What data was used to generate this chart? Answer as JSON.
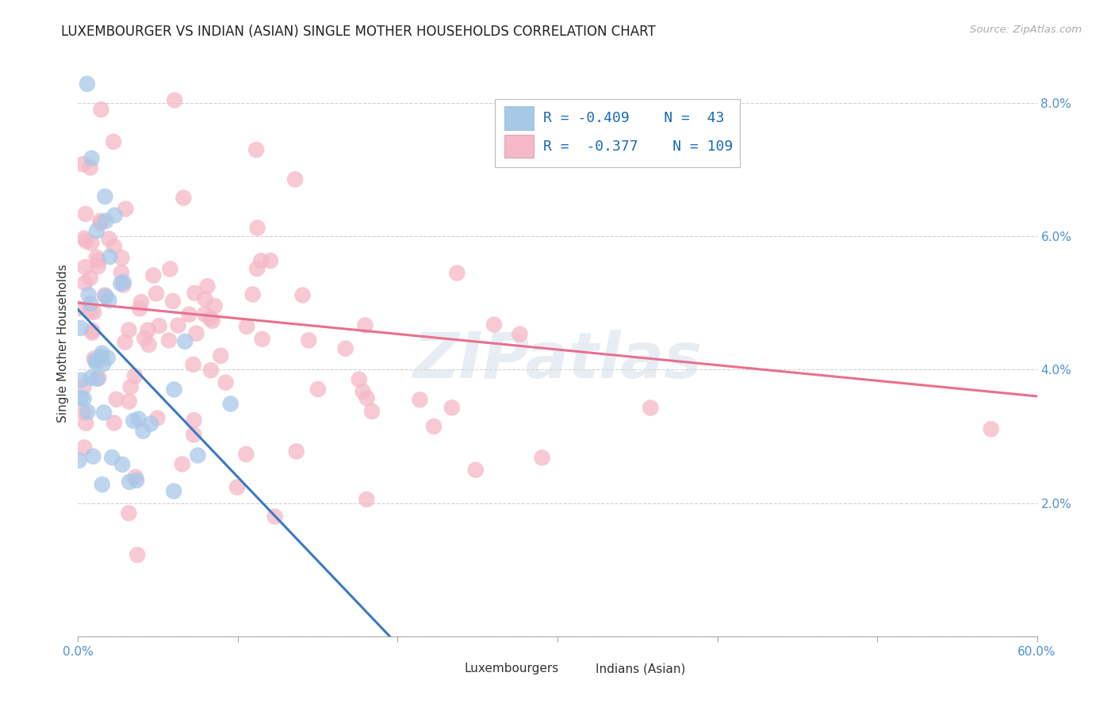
{
  "title": "LUXEMBOURGER VS INDIAN (ASIAN) SINGLE MOTHER HOUSEHOLDS CORRELATION CHART",
  "source": "Source: ZipAtlas.com",
  "ylabel": "Single Mother Households",
  "xlabel_lux": "Luxembourgers",
  "xlabel_ind": "Indians (Asian)",
  "watermark": "ZIPatlas",
  "xlim": [
    0.0,
    0.6
  ],
  "ylim": [
    0.0,
    0.088
  ],
  "xtick_vals": [
    0.0,
    0.1,
    0.2,
    0.3,
    0.4,
    0.5,
    0.6
  ],
  "xtick_labels": [
    "0.0%",
    "",
    "",
    "",
    "",
    "",
    "60.0%"
  ],
  "ytick_vals": [
    0.0,
    0.02,
    0.04,
    0.06,
    0.08
  ],
  "ytick_labels": [
    "",
    "2.0%",
    "4.0%",
    "6.0%",
    "8.0%"
  ],
  "lux_R": -0.409,
  "lux_N": 43,
  "ind_R": -0.377,
  "ind_N": 109,
  "lux_color": "#a8c8e8",
  "ind_color": "#f5b8c8",
  "lux_line_color": "#3a7abf",
  "ind_line_color": "#e87090",
  "background_color": "#ffffff",
  "grid_color": "#cccccc",
  "title_color": "#222222",
  "legend_R_color": "#1a6bb5",
  "tick_color": "#5090d0",
  "lux_line_x0": 0.0,
  "lux_line_y0": 0.049,
  "lux_line_x1": 0.195,
  "lux_line_y1": 0.0,
  "ind_line_x0": 0.0,
  "ind_line_y0": 0.05,
  "ind_line_x1": 0.6,
  "ind_line_y1": 0.036
}
